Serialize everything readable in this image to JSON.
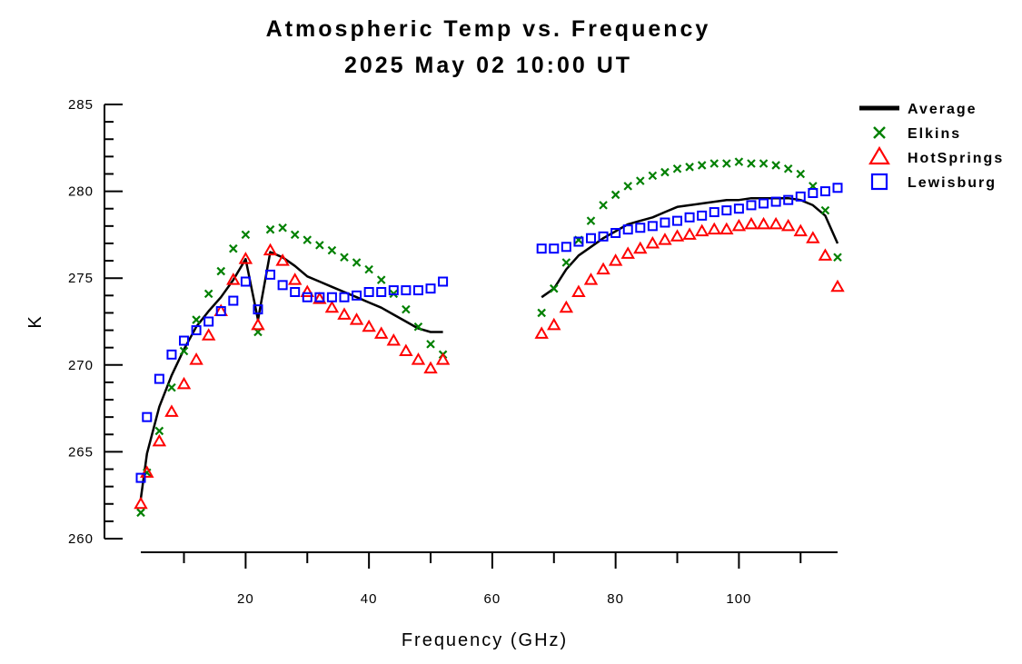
{
  "chart_data": {
    "type": "scatter",
    "title": "Atmospheric Temp vs. Frequency",
    "subtitle": "2025 May 02 10:00 UT",
    "xlabel": "Frequency (GHz)",
    "ylabel": "K",
    "xlim": [
      3,
      116
    ],
    "ylim": [
      260,
      285
    ],
    "xticks": [
      20,
      40,
      60,
      80,
      100
    ],
    "yticks": [
      260,
      265,
      270,
      275,
      280,
      285
    ],
    "grid": false,
    "legend_position": "top-right",
    "series": [
      {
        "name": "Average",
        "kind": "line",
        "color": "#000000",
        "segments": [
          {
            "x": [
              3,
              4,
              6,
              8,
              10,
              12,
              14,
              16,
              18,
              20,
              22,
              24,
              26,
              28,
              30,
              32,
              34,
              36,
              38,
              40,
              42,
              44,
              46,
              48,
              50,
              52
            ],
            "y": [
              262.3,
              264.9,
              267.6,
              269.4,
              270.9,
              272.2,
              273.1,
              273.9,
              274.9,
              276.1,
              272.6,
              276.5,
              276.2,
              275.7,
              275.1,
              274.8,
              274.5,
              274.2,
              273.9,
              273.6,
              273.3,
              272.9,
              272.5,
              272.1,
              271.9,
              271.9
            ]
          },
          {
            "x": [
              68,
              70,
              72,
              74,
              76,
              78,
              80,
              82,
              84,
              86,
              88,
              90,
              92,
              94,
              96,
              98,
              100,
              102,
              104,
              106,
              108,
              110,
              112,
              114,
              116
            ],
            "y": [
              273.9,
              274.4,
              275.5,
              276.3,
              276.8,
              277.3,
              277.7,
              278.1,
              278.3,
              278.5,
              278.8,
              279.1,
              279.2,
              279.3,
              279.4,
              279.5,
              279.5,
              279.6,
              279.6,
              279.6,
              279.6,
              279.5,
              279.2,
              278.6,
              277.0
            ]
          }
        ]
      },
      {
        "name": "Elkins",
        "kind": "x-marker",
        "color": "#008000",
        "x": [
          3,
          4,
          6,
          8,
          10,
          12,
          14,
          16,
          18,
          20,
          22,
          24,
          26,
          28,
          30,
          32,
          34,
          36,
          38,
          40,
          42,
          44,
          46,
          48,
          50,
          52,
          68,
          70,
          72,
          74,
          76,
          78,
          80,
          82,
          84,
          86,
          88,
          90,
          92,
          94,
          96,
          98,
          100,
          102,
          104,
          106,
          108,
          110,
          112,
          114,
          116
        ],
        "y": [
          261.5,
          263.8,
          266.2,
          268.7,
          270.8,
          272.6,
          274.1,
          275.4,
          276.7,
          277.5,
          271.9,
          277.8,
          277.9,
          277.5,
          277.2,
          276.9,
          276.6,
          276.2,
          275.9,
          275.5,
          274.9,
          274.1,
          273.2,
          272.2,
          271.2,
          270.6,
          273.0,
          274.4,
          275.9,
          277.2,
          278.3,
          279.2,
          279.8,
          280.3,
          280.6,
          280.9,
          281.1,
          281.3,
          281.4,
          281.5,
          281.6,
          281.6,
          281.7,
          281.6,
          281.6,
          281.5,
          281.3,
          281.0,
          280.3,
          278.9,
          276.2
        ]
      },
      {
        "name": "HotSprings",
        "kind": "triangle-marker",
        "color": "#ff0000",
        "x": [
          3,
          4,
          6,
          8,
          10,
          12,
          14,
          16,
          18,
          20,
          22,
          24,
          26,
          28,
          30,
          32,
          34,
          36,
          38,
          40,
          42,
          44,
          46,
          48,
          50,
          52,
          68,
          70,
          72,
          74,
          76,
          78,
          80,
          82,
          84,
          86,
          88,
          90,
          92,
          94,
          96,
          98,
          100,
          102,
          104,
          106,
          108,
          110,
          112,
          114,
          116
        ],
        "y": [
          262.0,
          263.8,
          265.6,
          267.3,
          268.9,
          270.3,
          271.7,
          273.1,
          274.9,
          276.1,
          272.3,
          276.6,
          276.0,
          274.9,
          274.2,
          273.8,
          273.3,
          272.9,
          272.6,
          272.2,
          271.8,
          271.4,
          270.8,
          270.3,
          269.8,
          270.3,
          271.8,
          272.3,
          273.3,
          274.2,
          274.9,
          275.5,
          276.0,
          276.4,
          276.7,
          277.0,
          277.2,
          277.4,
          277.5,
          277.7,
          277.8,
          277.8,
          278.0,
          278.1,
          278.1,
          278.1,
          278.0,
          277.7,
          277.3,
          276.3,
          274.5
        ]
      },
      {
        "name": "Lewisburg",
        "kind": "square-marker",
        "color": "#0000ff",
        "x": [
          3,
          4,
          6,
          8,
          10,
          12,
          14,
          16,
          18,
          20,
          22,
          24,
          26,
          28,
          30,
          32,
          34,
          36,
          38,
          40,
          42,
          44,
          46,
          48,
          50,
          52,
          68,
          70,
          72,
          74,
          76,
          78,
          80,
          82,
          84,
          86,
          88,
          90,
          92,
          94,
          96,
          98,
          100,
          102,
          104,
          106,
          108,
          110,
          112,
          114,
          116
        ],
        "y": [
          263.5,
          267.0,
          269.2,
          270.6,
          271.4,
          272.0,
          272.5,
          273.1,
          273.7,
          274.8,
          273.2,
          275.2,
          274.6,
          274.2,
          273.9,
          273.9,
          273.9,
          273.9,
          274.0,
          274.2,
          274.2,
          274.3,
          274.3,
          274.3,
          274.4,
          274.8,
          276.7,
          276.7,
          276.8,
          277.1,
          277.3,
          277.4,
          277.6,
          277.8,
          277.9,
          278.0,
          278.2,
          278.3,
          278.5,
          278.6,
          278.8,
          278.9,
          279.0,
          279.2,
          279.3,
          279.4,
          279.5,
          279.7,
          279.9,
          280.0,
          280.2
        ]
      }
    ]
  }
}
